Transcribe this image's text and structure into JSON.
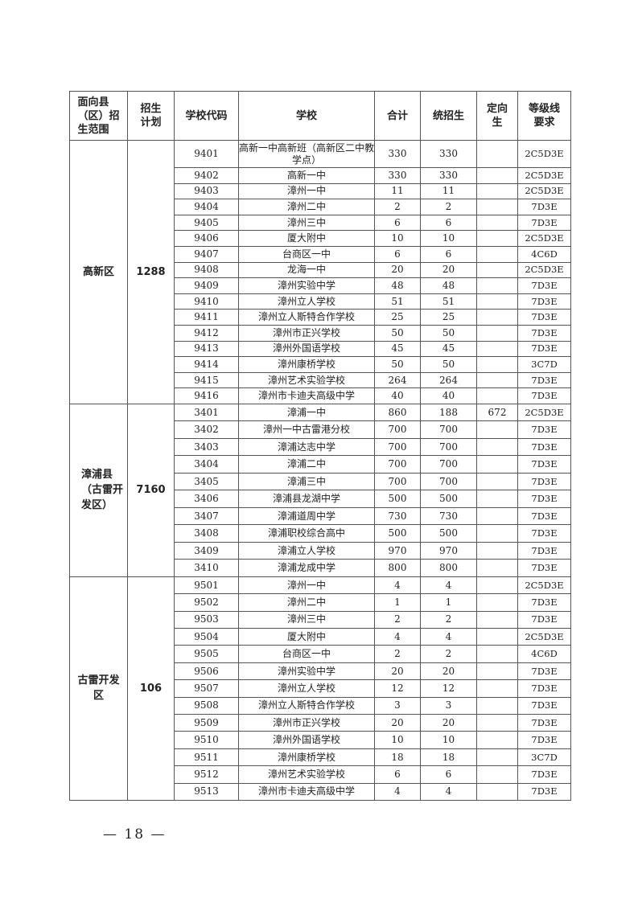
{
  "headers": [
    "面向县（区）招生范围",
    "招生计划",
    "学校代码",
    "学校",
    "合计",
    "统招生",
    "定向生",
    "等级线要求"
  ],
  "header_lines": [
    [
      "面向县",
      "（区）招",
      "生范围"
    ],
    [
      "招生",
      "计划"
    ],
    [
      "学校代码"
    ],
    [
      "学校"
    ],
    [
      "合计"
    ],
    [
      "统招生"
    ],
    [
      "定向",
      "生"
    ],
    [
      "等级线",
      "要求"
    ]
  ],
  "groups": [
    {
      "region_lines": [
        "高新区"
      ],
      "plan": "1288",
      "rows": [
        [
          "9401",
          "高新一中高新班（高新区二中教学点）",
          "330",
          "330",
          "",
          "2C5D3E"
        ],
        [
          "9402",
          "高新一中",
          "330",
          "330",
          "",
          "2C5D3E"
        ],
        [
          "9403",
          "漳州一中",
          "11",
          "11",
          "",
          "2C5D3E"
        ],
        [
          "9404",
          "漳州二中",
          "2",
          "2",
          "",
          "7D3E"
        ],
        [
          "9405",
          "漳州三中",
          "6",
          "6",
          "",
          "7D3E"
        ],
        [
          "9406",
          "厦大附中",
          "10",
          "10",
          "",
          "2C5D3E"
        ],
        [
          "9407",
          "台商区一中",
          "6",
          "6",
          "",
          "4C6D"
        ],
        [
          "9408",
          "龙海一中",
          "20",
          "20",
          "",
          "2C5D3E"
        ],
        [
          "9409",
          "漳州实验中学",
          "48",
          "48",
          "",
          "7D3E"
        ],
        [
          "9410",
          "漳州立人学校",
          "51",
          "51",
          "",
          "7D3E"
        ],
        [
          "9411",
          "漳州立人斯特合作学校",
          "25",
          "25",
          "",
          "7D3E"
        ],
        [
          "9412",
          "漳州市正兴学校",
          "50",
          "50",
          "",
          "7D3E"
        ],
        [
          "9413",
          "漳州外国语学校",
          "45",
          "45",
          "",
          "7D3E"
        ],
        [
          "9414",
          "漳州康桥学校",
          "50",
          "50",
          "",
          "3C7D"
        ],
        [
          "9415",
          "漳州艺术实验学校",
          "264",
          "264",
          "",
          "7D3E"
        ],
        [
          "9416",
          "漳州市卡迪夫高级中学",
          "40",
          "40",
          "",
          "7D3E"
        ]
      ]
    },
    {
      "region_lines": [
        "漳浦县",
        "（古雷开",
        "发区）"
      ],
      "plan": "7160",
      "rows": [
        [
          "3401",
          "漳浦一中",
          "860",
          "188",
          "672",
          "2C5D3E"
        ],
        [
          "3402",
          "漳州一中古雷港分校",
          "700",
          "700",
          "",
          "7D3E"
        ],
        [
          "3403",
          "漳浦达志中学",
          "700",
          "700",
          "",
          "7D3E"
        ],
        [
          "3404",
          "漳浦二中",
          "700",
          "700",
          "",
          "7D3E"
        ],
        [
          "3405",
          "漳浦三中",
          "700",
          "700",
          "",
          "7D3E"
        ],
        [
          "3406",
          "漳浦县龙湖中学",
          "500",
          "500",
          "",
          "7D3E"
        ],
        [
          "3407",
          "漳浦道周中学",
          "730",
          "730",
          "",
          "7D3E"
        ],
        [
          "3408",
          "漳浦职校综合高中",
          "500",
          "500",
          "",
          "7D3E"
        ],
        [
          "3409",
          "漳浦立人学校",
          "970",
          "970",
          "",
          "7D3E"
        ],
        [
          "3410",
          "漳浦龙成中学",
          "800",
          "800",
          "",
          "7D3E"
        ]
      ]
    },
    {
      "region_lines": [
        "古雷开发",
        "区"
      ],
      "plan": "106",
      "rows": [
        [
          "9501",
          "漳州一中",
          "4",
          "4",
          "",
          "2C5D3E"
        ],
        [
          "9502",
          "漳州二中",
          "1",
          "1",
          "",
          "7D3E"
        ],
        [
          "9503",
          "漳州三中",
          "2",
          "2",
          "",
          "7D3E"
        ],
        [
          "9504",
          "厦大附中",
          "4",
          "4",
          "",
          "2C5D3E"
        ],
        [
          "9505",
          "台商区一中",
          "2",
          "2",
          "",
          "4C6D"
        ],
        [
          "9506",
          "漳州实验中学",
          "20",
          "20",
          "",
          "7D3E"
        ],
        [
          "9507",
          "漳州立人学校",
          "12",
          "12",
          "",
          "7D3E"
        ],
        [
          "9508",
          "漳州立人斯特合作学校",
          "3",
          "3",
          "",
          "7D3E"
        ],
        [
          "9509",
          "漳州市正兴学校",
          "20",
          "20",
          "",
          "7D3E"
        ],
        [
          "9510",
          "漳州外国语学校",
          "10",
          "10",
          "",
          "7D3E"
        ],
        [
          "9511",
          "漳州康桥学校",
          "18",
          "18",
          "",
          "3C7D"
        ],
        [
          "9512",
          "漳州艺术实验学校",
          "6",
          "6",
          "",
          "7D3E"
        ],
        [
          "9513",
          "漳州市卡迪夫高级中学",
          "4",
          "4",
          "",
          "7D3E"
        ]
      ]
    }
  ],
  "page_number": "— 18 —"
}
